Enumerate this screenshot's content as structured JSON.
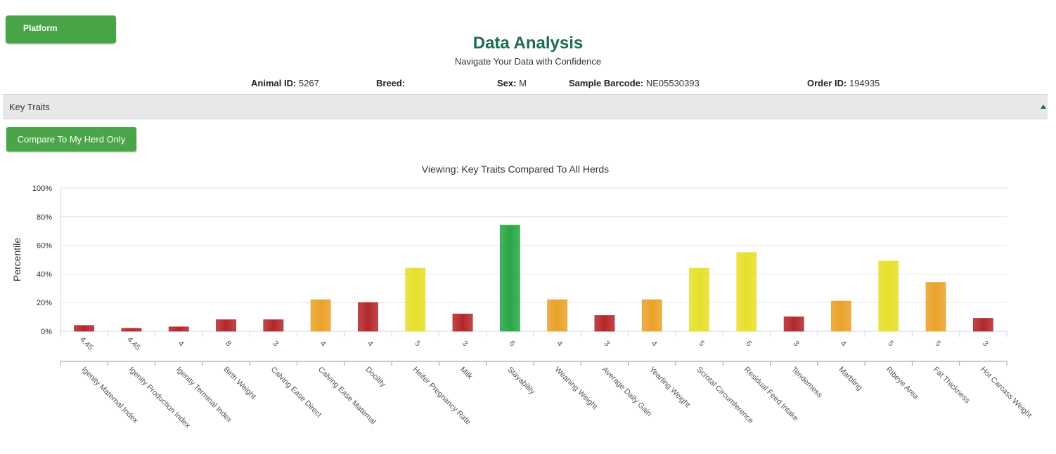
{
  "header": {
    "platform_label": "Platform",
    "title": "Data Analysis",
    "subtitle": "Navigate Your Data with Confidence"
  },
  "animal_info": {
    "animal_id_label": "Animal ID:",
    "animal_id": "5267",
    "breed_label": "Breed:",
    "breed": "",
    "sex_label": "Sex:",
    "sex": "M",
    "barcode_label": "Sample Barcode:",
    "barcode": "NE05530393",
    "order_id_label": "Order ID:",
    "order_id": "194935"
  },
  "section": {
    "title": "Key Traits",
    "compare_button": "Compare To My Herd Only"
  },
  "colors": {
    "brand_green": "#4aa548",
    "title_green": "#1d6b52",
    "bar_red": "#b3272a",
    "bar_orange": "#eaa229",
    "bar_yellow": "#e6e02a",
    "bar_green": "#28a745"
  },
  "chart_data": {
    "type": "bar",
    "title": "Viewing: Key Traits Compared To All Herds",
    "ylabel": "Percentile",
    "xlabel": "",
    "ylim": [
      0,
      100
    ],
    "yticks": [
      "0%",
      "20%",
      "40%",
      "60%",
      "80%",
      "100%"
    ],
    "categories": [
      "Igenity Maternal Index",
      "Igenity Production Index",
      "Igenity Terminal Index",
      "Birth Weight",
      "Calving Ease Direct",
      "Calving Ease Maternal",
      "Docility",
      "Heifer Pregnancy Rate",
      "Milk",
      "Stayability",
      "Weaning Weight",
      "Average Daily Gain",
      "Yearling Weight",
      "Scrotal Circumference",
      "Residual Feed Intake",
      "Tenderness",
      "Marbling",
      "Ribeye Area",
      "Fat Thickness",
      "Hot Carcass Weight"
    ],
    "scores": [
      "4.45",
      "4.45",
      "4",
      "8",
      "3",
      "4",
      "4",
      "5",
      "3",
      "6",
      "4",
      "3",
      "4",
      "5",
      "6",
      "3",
      "4",
      "5",
      "5",
      "3"
    ],
    "values": [
      4,
      2,
      3,
      8,
      8,
      22,
      20,
      44,
      12,
      74,
      22,
      11,
      22,
      44,
      55,
      10,
      21,
      49,
      34,
      9
    ],
    "colors": [
      "red",
      "red",
      "red",
      "red",
      "red",
      "orange",
      "red",
      "yellow",
      "red",
      "green",
      "orange",
      "red",
      "orange",
      "yellow",
      "yellow",
      "red",
      "orange",
      "yellow",
      "orange",
      "red"
    ]
  }
}
